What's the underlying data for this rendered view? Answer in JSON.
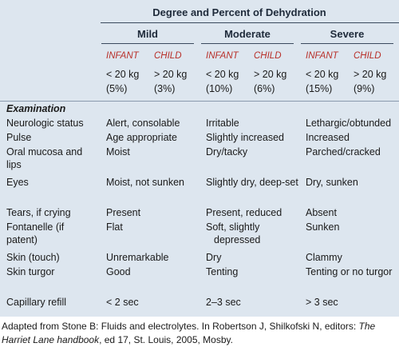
{
  "table": {
    "title": "Degree and Percent of Dehydration",
    "groups": [
      {
        "name": "Mild",
        "columns": [
          {
            "label": "INFANT",
            "weight": "< 20 kg",
            "percent": "(5%)"
          },
          {
            "label": "CHILD",
            "weight": "> 20 kg",
            "percent": "(3%)"
          }
        ]
      },
      {
        "name": "Moderate",
        "columns": [
          {
            "label": "INFANT",
            "weight": "< 20 kg",
            "percent": "(10%)"
          },
          {
            "label": "CHILD",
            "weight": "> 20 kg",
            "percent": "(6%)"
          }
        ]
      },
      {
        "name": "Severe",
        "columns": [
          {
            "label": "INFANT",
            "weight": "< 20 kg",
            "percent": "(15%)"
          },
          {
            "label": "CHILD",
            "weight": "> 20 kg",
            "percent": "(9%)"
          }
        ]
      }
    ],
    "section": "Examination",
    "rows": [
      [
        "Neurologic status",
        "Alert, consolable",
        "Irritable",
        "Lethargic/obtunded"
      ],
      [
        "Pulse",
        "Age appropriate",
        "Slightly increased",
        "Increased"
      ],
      [
        "Oral mucosa and lips",
        "Moist",
        "Dry/tacky",
        "Parched/cracked"
      ],
      [
        "Eyes",
        "Moist, not sunken",
        "Slightly dry, deep-set",
        "Dry, sunken"
      ],
      [
        "Tears, if crying",
        "Present",
        "Present, reduced",
        "Absent"
      ],
      [
        "Fontanelle (if patent)",
        "Flat",
        "Soft, slightly depressed",
        "Sunken"
      ],
      [
        "Skin (touch)",
        "Unremarkable",
        "Dry",
        "Clammy"
      ],
      [
        "Skin turgor",
        "Good",
        "Tenting",
        "Tenting or no turgor"
      ],
      [
        "Capillary refill",
        "< 2 sec",
        "2–3 sec",
        "> 3 sec"
      ]
    ]
  },
  "caption": {
    "before": "Adapted from Stone B: Fluids and electrolytes. In Robertson J, Shilkofski N, editors: ",
    "title": "The Harriet Lane handbook",
    "after": ", ed 17, St. Louis, 2005, Mosby."
  }
}
